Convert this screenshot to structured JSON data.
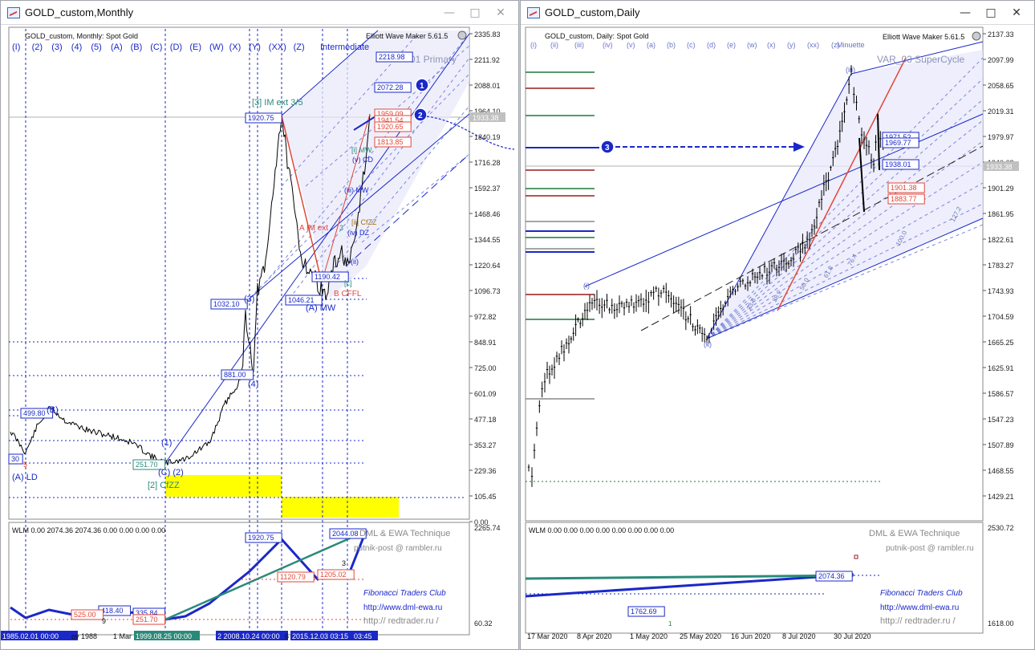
{
  "left_window": {
    "title": "GOLD_custom,Monthly",
    "subtitle": "GOLD_custom, Monthly:  Spot Gold",
    "plugin": "Elliott Wave Maker 5.61.5",
    "degree_buttons": [
      "(I)",
      "(2)",
      "(3)",
      "(4)",
      "(5)",
      "(A)",
      "(B)",
      "(C)",
      "(D)",
      "(E)",
      "(W)",
      "(X)",
      "(Y)",
      "(XX)",
      "(Z)"
    ],
    "degree_label": "Intermediate",
    "series_label": "01 Primary",
    "price_axis": [
      "2335.83",
      "2211.92",
      "2088.01",
      "1964.10",
      "1840.19",
      "1716.28",
      "1592.37",
      "1468.46",
      "1344.55",
      "1220.64",
      "1096.73",
      "972.82",
      "848.91",
      "725.00",
      "601.09",
      "477.18",
      "353.27",
      "229.36",
      "105.45",
      "0.00"
    ],
    "current_price": "1933.38",
    "price_boxes": [
      "1920.75",
      "1032.10",
      "881.00",
      "499.80",
      "251.70",
      "1046.21",
      "2218.98",
      "2072.28",
      "1813.85",
      "1959.09",
      "1941.54",
      "1920.65",
      "1190.42",
      "30"
    ],
    "wave_labels": [
      "[3] IM ext 3/5",
      "(3)",
      "(4)",
      "(B)",
      "(1)",
      "(C) (2)",
      "(A) LD",
      "[2] CfZZ",
      "(A) MW",
      "B CFFL",
      "[i] MW",
      "(v) CD",
      "(iii) MW",
      "[ii] CfZZ",
      "(iv) DZ",
      "(ii)",
      "[c]",
      "A IM ext",
      "3",
      "5"
    ],
    "markers": [
      "1",
      "2"
    ],
    "indicator_header": "WLM 0.00 2074.36 2074.36 0.00 0.00 0.00 0.00",
    "indicator_axis": [
      "2265.74",
      "60.32"
    ],
    "indicator_boxes": [
      "1920.75",
      "2044.08",
      "418.40",
      "525.00",
      "335.84",
      "251.70",
      "1120.79",
      "1205.02"
    ],
    "indicator_small": [
      "9",
      "3"
    ],
    "date_axis": [
      "1985.02.01 00:00",
      "ov 1988",
      "1 Mar",
      "1999.08.25 00:00",
      "2 2008.10.24 00:00",
      "6",
      "2015.12.03 03:15",
      "03:45"
    ]
  },
  "right_window": {
    "title": "GOLD_custom,Daily",
    "subtitle": "GOLD_custom, Daily:  Spot Gold",
    "plugin": "Elliott Wave Maker 5.61.5",
    "degree_buttons": [
      "(i)",
      "(ii)",
      "(iii)",
      "(iv)",
      "(v)",
      "(a)",
      "(b)",
      "(c)",
      "(d)",
      "(e)",
      "(w)",
      "(x)",
      "(y)",
      "(xx)",
      "(z)"
    ],
    "degree_label": "Minuette",
    "series_label": "VAR_03 SuperCycle",
    "price_axis": [
      "2137.33",
      "2097.99",
      "2058.65",
      "2019.31",
      "1979.97",
      "1940.63",
      "1901.29",
      "1861.95",
      "1822.61",
      "1783.27",
      "1743.93",
      "1704.59",
      "1665.25",
      "1625.91",
      "1586.57",
      "1547.23",
      "1507.89",
      "1468.55",
      "1429.21"
    ],
    "current_price": "1933.38",
    "price_boxes": [
      "1971.52",
      "1969.77",
      "1938.01",
      "1901.38",
      "1883.77"
    ],
    "wave_labels": [
      "(iii)",
      "(i)",
      "(ii)"
    ],
    "fib_labels": [
      "23.6",
      "38.2",
      "50.0",
      "61.8",
      "76.4",
      "100.0",
      "127.2"
    ],
    "marker": "3",
    "indicator_header": "WLM 0.00 0.00 0.00 0.00 0.00 0.00 0.00 0.00",
    "indicator_axis": [
      "2530.72",
      "1618.00"
    ],
    "indicator_boxes": [
      "2074.36",
      "1762.69"
    ],
    "indicator_small": [
      "1"
    ],
    "date_axis": [
      "17 Mar 2020",
      "8 Apr 2020",
      "1 May 2020",
      "25 May 2020",
      "16 Jun 2020",
      "8 Jul 2020",
      "30 Jul 2020"
    ]
  },
  "watermark": {
    "title": "DML & EWA Technique",
    "email": "putnik-post @ rambler.ru",
    "club": "Fibonacci   Traders   Club",
    "url1": "http://www.dml-ewa.ru",
    "url2": "http:// redtrader.ru /"
  },
  "colors": {
    "wave_blue": "#1a28c8",
    "fib_red": "#e0473a",
    "teal": "#2a8a7a",
    "yellow_zone": "#ffff00",
    "axis_text": "#222222"
  }
}
